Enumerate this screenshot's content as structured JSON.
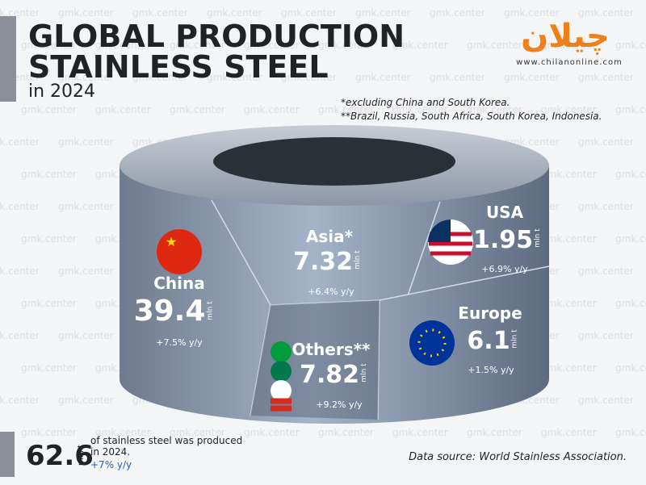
{
  "header": {
    "title_lines": [
      "GLOBAL PRODUCTION",
      "STAINLESS STEEL"
    ],
    "subtitle": "in 2024"
  },
  "logo": {
    "text": "چیلان",
    "url": "www.chilanonline.com"
  },
  "watermark": "gmk.center",
  "notes": [
    "*excluding China and South Korea.",
    "**Brazil, Russia, South Africa, South Korea, Indonesia."
  ],
  "regions": [
    {
      "name": "China",
      "value": 39.4,
      "unit": "mln t",
      "growth": "+7.5% y/y"
    },
    {
      "name": "Asia*",
      "value": 7.32,
      "unit": "mln t",
      "growth": "+6.4% y/y"
    },
    {
      "name": "USA",
      "value": 1.95,
      "unit": "mln t",
      "growth": "+6.9% y/y"
    },
    {
      "name": "Europe",
      "value": 6.1,
      "unit": "mln t",
      "growth": "+1.5% y/y"
    },
    {
      "name": "Others**",
      "value": 7.82,
      "unit": "mln t",
      "growth": "+9.2% y/y"
    }
  ],
  "total": {
    "value": 62.6,
    "unit": "mln t",
    "text_lines": [
      "of stainless steel was produced",
      "in 2024."
    ],
    "growth": "+7% y/y"
  },
  "source": "Data source: World Stainless Association."
}
